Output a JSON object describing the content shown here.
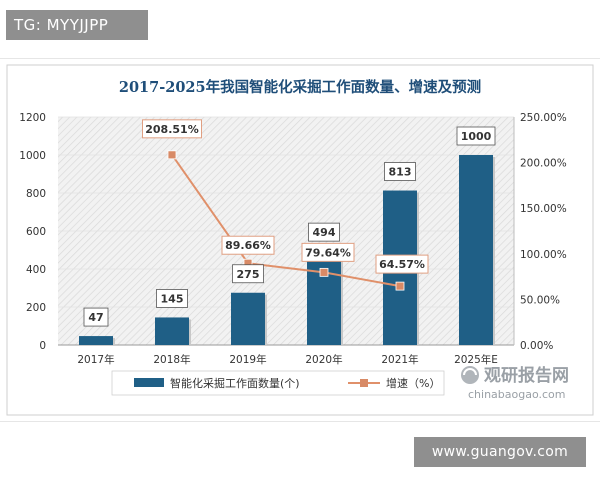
{
  "header_tag": "TG: MYYJJPP",
  "footer_tag": "www.guangov.com",
  "watermark": {
    "cn": "观研报告网",
    "en": "chinabaogao.com"
  },
  "chart_data": {
    "type": "bar",
    "title": "2017-2025年我国智能化采掘工作面数量、增速及预测",
    "categories": [
      "2017年",
      "2018年",
      "2019年",
      "2020年",
      "2021年",
      "2025年E"
    ],
    "series": [
      {
        "name": "智能化采掘工作面数量(个)",
        "type": "bar",
        "axis": "left",
        "color": "#1f5f86",
        "values": [
          47,
          145,
          275,
          494,
          813,
          1000
        ],
        "labels": [
          "47",
          "145",
          "275",
          "494",
          "813",
          "1000"
        ]
      },
      {
        "name": "增速（%）",
        "type": "line",
        "axis": "right",
        "color": "#e0906a",
        "values": [
          null,
          208.51,
          89.66,
          79.64,
          64.57,
          null
        ],
        "labels": [
          "",
          "208.51%",
          "89.66%",
          "79.64%",
          "64.57%",
          ""
        ]
      }
    ],
    "y_left": {
      "min": 0,
      "max": 1200,
      "ticks": [
        "0",
        "200",
        "400",
        "600",
        "800",
        "1000",
        "1200"
      ]
    },
    "y_right": {
      "min": 0,
      "max": 250,
      "ticks": [
        "0.00%",
        "50.00%",
        "100.00%",
        "150.00%",
        "200.00%",
        "250.00%"
      ]
    },
    "grid": true,
    "legend_position": "bottom"
  }
}
